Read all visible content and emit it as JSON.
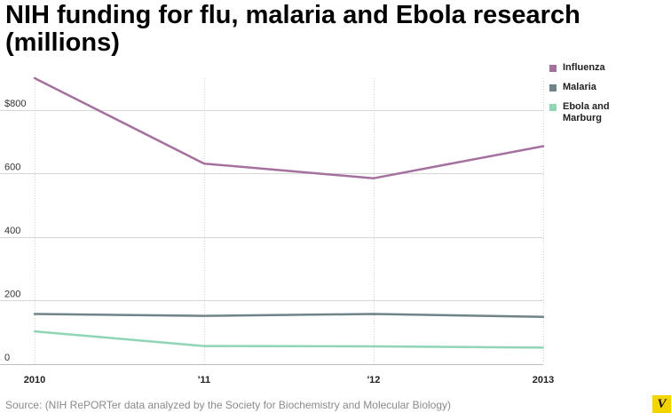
{
  "title_lines": [
    "NIH funding for flu, malaria and Ebola research",
    "(millions)"
  ],
  "source": "Source: (NIH RePORTer data analyzed by the Society for Biochemistry and Molecular Biology)",
  "logo_text": "V",
  "chart_data": {
    "type": "line",
    "x": [
      2010,
      2011,
      2012,
      2013
    ],
    "x_tick_labels": [
      "2010",
      "'11",
      "'12",
      "2013"
    ],
    "y_ticks": [
      0,
      200,
      400,
      600,
      800
    ],
    "y_tick_labels": [
      "0",
      "200",
      "400",
      "600",
      "$800"
    ],
    "ylim": [
      0,
      900
    ],
    "grid": true,
    "legend_position": "right",
    "series": [
      {
        "name": "Influenza",
        "color": "#a4719f",
        "values": [
          900,
          631,
          585,
          686
        ]
      },
      {
        "name": "Malaria",
        "color": "#6f8389",
        "values": [
          158,
          152,
          158,
          149
        ]
      },
      {
        "name": "Ebola and Marburg",
        "color": "#8fd5b6",
        "values": [
          103,
          57,
          56,
          52
        ]
      }
    ]
  }
}
